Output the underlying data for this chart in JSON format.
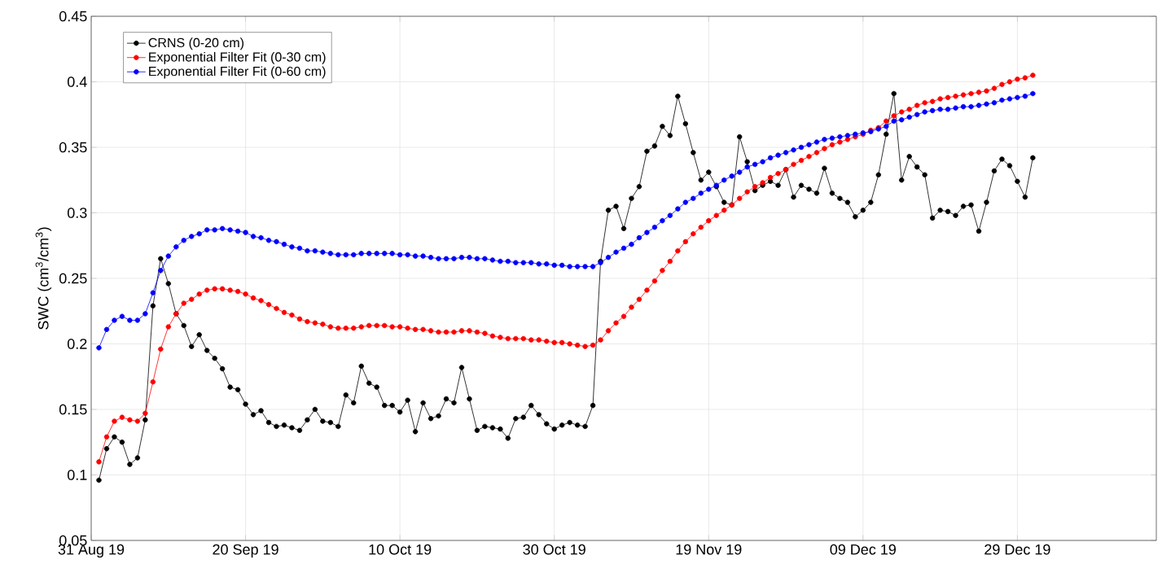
{
  "chart_data": {
    "type": "line",
    "ylabel": "SWC (cm$^{3}$/cm$^{3}$)",
    "x": [
      "2019-09-01",
      "2019-09-02",
      "2019-09-03",
      "2019-09-04",
      "2019-09-05",
      "2019-09-06",
      "2019-09-07",
      "2019-09-08",
      "2019-09-09",
      "2019-09-10",
      "2019-09-11",
      "2019-09-12",
      "2019-09-13",
      "2019-09-14",
      "2019-09-15",
      "2019-09-16",
      "2019-09-17",
      "2019-09-18",
      "2019-09-19",
      "2019-09-20",
      "2019-09-21",
      "2019-09-22",
      "2019-09-23",
      "2019-09-24",
      "2019-09-25",
      "2019-09-26",
      "2019-09-27",
      "2019-09-28",
      "2019-09-29",
      "2019-09-30",
      "2019-10-01",
      "2019-10-02",
      "2019-10-03",
      "2019-10-04",
      "2019-10-05",
      "2019-10-06",
      "2019-10-07",
      "2019-10-08",
      "2019-10-09",
      "2019-10-10",
      "2019-10-11",
      "2019-10-12",
      "2019-10-13",
      "2019-10-14",
      "2019-10-15",
      "2019-10-16",
      "2019-10-17",
      "2019-10-18",
      "2019-10-19",
      "2019-10-20",
      "2019-10-21",
      "2019-10-22",
      "2019-10-23",
      "2019-10-24",
      "2019-10-25",
      "2019-10-26",
      "2019-10-27",
      "2019-10-28",
      "2019-10-29",
      "2019-10-30",
      "2019-10-31",
      "2019-11-01",
      "2019-11-02",
      "2019-11-03",
      "2019-11-04",
      "2019-11-05",
      "2019-11-06",
      "2019-11-07",
      "2019-11-08",
      "2019-11-09",
      "2019-11-10",
      "2019-11-11",
      "2019-11-12",
      "2019-11-13",
      "2019-11-14",
      "2019-11-15",
      "2019-11-16",
      "2019-11-17",
      "2019-11-18",
      "2019-11-19",
      "2019-11-20",
      "2019-11-21",
      "2019-11-22",
      "2019-11-23",
      "2019-11-24",
      "2019-11-25",
      "2019-11-26",
      "2019-11-27",
      "2019-11-28",
      "2019-11-29",
      "2019-11-30",
      "2019-12-01",
      "2019-12-02",
      "2019-12-03",
      "2019-12-04",
      "2019-12-05",
      "2019-12-06",
      "2019-12-07",
      "2019-12-08",
      "2019-12-09",
      "2019-12-10",
      "2019-12-11",
      "2019-12-12",
      "2019-12-13",
      "2019-12-14",
      "2019-12-15",
      "2019-12-16",
      "2019-12-17",
      "2019-12-18",
      "2019-12-19",
      "2019-12-20",
      "2019-12-21",
      "2019-12-22",
      "2019-12-23",
      "2019-12-24",
      "2019-12-25",
      "2019-12-26",
      "2019-12-27",
      "2019-12-28",
      "2019-12-29",
      "2019-12-30",
      "2019-12-31"
    ],
    "series": [
      {
        "name": "CRNS (0-20 cm)",
        "color": "#000000",
        "values": [
          0.096,
          0.12,
          0.129,
          0.125,
          0.108,
          0.113,
          0.142,
          0.229,
          0.265,
          0.246,
          0.223,
          0.214,
          0.198,
          0.207,
          0.195,
          0.189,
          0.181,
          0.167,
          0.165,
          0.154,
          0.146,
          0.149,
          0.14,
          0.137,
          0.138,
          0.136,
          0.134,
          0.142,
          0.15,
          0.141,
          0.14,
          0.137,
          0.161,
          0.155,
          0.183,
          0.17,
          0.167,
          0.153,
          0.153,
          0.148,
          0.157,
          0.133,
          0.155,
          0.143,
          0.145,
          0.158,
          0.155,
          0.182,
          0.158,
          0.134,
          0.137,
          0.136,
          0.135,
          0.128,
          0.143,
          0.144,
          0.153,
          0.146,
          0.139,
          0.135,
          0.138,
          0.14,
          0.138,
          0.137,
          0.153,
          0.263,
          0.302,
          0.305,
          0.288,
          0.311,
          0.32,
          0.347,
          0.351,
          0.366,
          0.359,
          0.389,
          0.368,
          0.346,
          0.325,
          0.331,
          0.32,
          0.308,
          0.306,
          0.358,
          0.339,
          0.317,
          0.321,
          0.324,
          0.321,
          0.333,
          0.312,
          0.321,
          0.318,
          0.315,
          0.334,
          0.315,
          0.311,
          0.308,
          0.297,
          0.302,
          0.308,
          0.329,
          0.36,
          0.391,
          0.325,
          0.343,
          0.335,
          0.329,
          0.296,
          0.302,
          0.301,
          0.298,
          0.305,
          0.306,
          0.286,
          0.308,
          0.332,
          0.341,
          0.336,
          0.324,
          0.312,
          0.342
        ]
      },
      {
        "name": "Exponential Filter Fit (0-30 cm)",
        "color": "#ff0000",
        "values": [
          0.11,
          0.129,
          0.141,
          0.144,
          0.142,
          0.141,
          0.147,
          0.171,
          0.196,
          0.213,
          0.223,
          0.231,
          0.234,
          0.238,
          0.241,
          0.242,
          0.242,
          0.241,
          0.24,
          0.238,
          0.235,
          0.233,
          0.23,
          0.227,
          0.224,
          0.222,
          0.219,
          0.217,
          0.216,
          0.215,
          0.213,
          0.212,
          0.212,
          0.212,
          0.213,
          0.214,
          0.214,
          0.214,
          0.213,
          0.213,
          0.212,
          0.211,
          0.211,
          0.21,
          0.209,
          0.209,
          0.209,
          0.21,
          0.21,
          0.209,
          0.208,
          0.206,
          0.205,
          0.204,
          0.204,
          0.204,
          0.203,
          0.203,
          0.202,
          0.201,
          0.201,
          0.2,
          0.199,
          0.198,
          0.199,
          0.203,
          0.21,
          0.216,
          0.221,
          0.228,
          0.234,
          0.241,
          0.248,
          0.256,
          0.263,
          0.271,
          0.278,
          0.284,
          0.289,
          0.294,
          0.298,
          0.302,
          0.306,
          0.311,
          0.316,
          0.32,
          0.323,
          0.327,
          0.33,
          0.333,
          0.337,
          0.34,
          0.343,
          0.346,
          0.349,
          0.352,
          0.354,
          0.356,
          0.358,
          0.36,
          0.363,
          0.365,
          0.37,
          0.374,
          0.377,
          0.379,
          0.382,
          0.384,
          0.385,
          0.387,
          0.388,
          0.389,
          0.39,
          0.391,
          0.392,
          0.393,
          0.395,
          0.398,
          0.4,
          0.402,
          0.403,
          0.405
        ]
      },
      {
        "name": "Exponential Filter Fit (0-60 cm)",
        "color": "#0000ff",
        "values": [
          0.197,
          0.211,
          0.218,
          0.221,
          0.218,
          0.218,
          0.223,
          0.239,
          0.256,
          0.267,
          0.274,
          0.279,
          0.282,
          0.284,
          0.287,
          0.287,
          0.288,
          0.287,
          0.286,
          0.285,
          0.282,
          0.281,
          0.279,
          0.278,
          0.276,
          0.274,
          0.273,
          0.271,
          0.271,
          0.27,
          0.269,
          0.268,
          0.268,
          0.268,
          0.269,
          0.269,
          0.269,
          0.269,
          0.269,
          0.268,
          0.268,
          0.267,
          0.267,
          0.266,
          0.265,
          0.265,
          0.265,
          0.266,
          0.266,
          0.265,
          0.265,
          0.264,
          0.263,
          0.263,
          0.262,
          0.262,
          0.262,
          0.261,
          0.261,
          0.26,
          0.26,
          0.259,
          0.259,
          0.259,
          0.259,
          0.262,
          0.266,
          0.27,
          0.273,
          0.276,
          0.281,
          0.285,
          0.289,
          0.294,
          0.298,
          0.303,
          0.308,
          0.311,
          0.315,
          0.318,
          0.321,
          0.325,
          0.328,
          0.331,
          0.335,
          0.337,
          0.339,
          0.342,
          0.344,
          0.346,
          0.348,
          0.35,
          0.352,
          0.354,
          0.356,
          0.357,
          0.358,
          0.359,
          0.36,
          0.361,
          0.362,
          0.364,
          0.366,
          0.37,
          0.371,
          0.373,
          0.375,
          0.377,
          0.378,
          0.379,
          0.379,
          0.38,
          0.381,
          0.381,
          0.382,
          0.383,
          0.384,
          0.386,
          0.387,
          0.388,
          0.389,
          0.391
        ]
      }
    ],
    "xlim": [
      "2019-08-31",
      "2020-01-16"
    ],
    "xticks": [
      {
        "value": "2019-08-31",
        "label": "31 Aug 19"
      },
      {
        "value": "2019-09-20",
        "label": "20 Sep 19"
      },
      {
        "value": "2019-10-10",
        "label": "10 Oct 19"
      },
      {
        "value": "2019-10-30",
        "label": "30 Oct 19"
      },
      {
        "value": "2019-11-19",
        "label": "19 Nov 19"
      },
      {
        "value": "2019-12-09",
        "label": "09 Dec 19"
      },
      {
        "value": "2019-12-29",
        "label": "29 Dec 19"
      }
    ],
    "ylim": [
      0.05,
      0.45
    ],
    "yticks": [
      0.05,
      0.1,
      0.15,
      0.2,
      0.25,
      0.3,
      0.35,
      0.4,
      0.45
    ],
    "grid": true,
    "legend": "top left",
    "marker": "circle",
    "line_style": "solid"
  }
}
